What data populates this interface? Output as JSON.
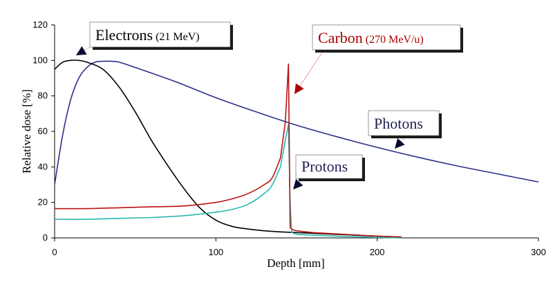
{
  "chart_data": {
    "type": "line",
    "xlabel": "Depth [mm]",
    "ylabel": "Relative dose [%]",
    "xlim": [
      0,
      300
    ],
    "ylim": [
      0,
      120
    ],
    "x_ticks": [
      0,
      100,
      200,
      300
    ],
    "y_ticks": [
      0,
      20,
      40,
      60,
      80,
      100,
      120
    ],
    "grid": false,
    "series": [
      {
        "name": "Electrons",
        "label_suffix": "(21 MeV)",
        "color": "#000000",
        "label_color": "#000000",
        "x": [
          0,
          5,
          10,
          15,
          20,
          30,
          40,
          50,
          60,
          70,
          80,
          90,
          100,
          110,
          120,
          130,
          140,
          150,
          175,
          200,
          215
        ],
        "y": [
          95,
          99,
          100,
          100,
          99,
          95,
          85,
          71,
          55,
          41,
          28,
          17,
          10,
          6.5,
          5,
          4,
          3.4,
          3,
          2,
          1,
          0.5
        ]
      },
      {
        "name": "Photons",
        "label_suffix": "",
        "color": "#2b2f8a",
        "label_color": "#1f1f4f",
        "x": [
          0,
          5,
          10,
          15,
          20,
          25,
          30,
          35,
          40,
          50,
          75,
          100,
          125,
          150,
          175,
          200,
          225,
          250,
          275,
          300
        ],
        "y": [
          30,
          58,
          78,
          90,
          96,
          99,
          99.5,
          99.5,
          99,
          96,
          88,
          79,
          71,
          63.5,
          57,
          51,
          45.5,
          40.5,
          36,
          31.5
        ]
      },
      {
        "name": "Carbon",
        "label_suffix": "(270 MeV/u)",
        "color": "#bb1111",
        "label_color": "#aa0000",
        "x": [
          0,
          20,
          40,
          60,
          80,
          100,
          110,
          120,
          130,
          135,
          140,
          143,
          145,
          146,
          147,
          148,
          150,
          160,
          180,
          200,
          215
        ],
        "y": [
          16.5,
          16.5,
          17,
          17.5,
          18,
          20,
          22,
          25,
          30,
          34,
          45,
          65,
          98,
          6,
          5,
          4.5,
          4,
          3,
          2,
          1,
          0.5
        ]
      },
      {
        "name": "Protons",
        "label_suffix": "",
        "color": "#28b8b0",
        "label_color": "#1f1f4f",
        "x": [
          0,
          20,
          40,
          60,
          80,
          100,
          110,
          120,
          130,
          135,
          140,
          143,
          145,
          146,
          147,
          150,
          160,
          180,
          200,
          215
        ],
        "y": [
          10.5,
          10.5,
          11,
          11.5,
          12.5,
          14.5,
          16,
          19,
          25,
          30,
          40,
          55,
          64,
          20,
          3,
          2,
          1.5,
          0.8,
          0.3,
          0
        ]
      }
    ]
  }
}
